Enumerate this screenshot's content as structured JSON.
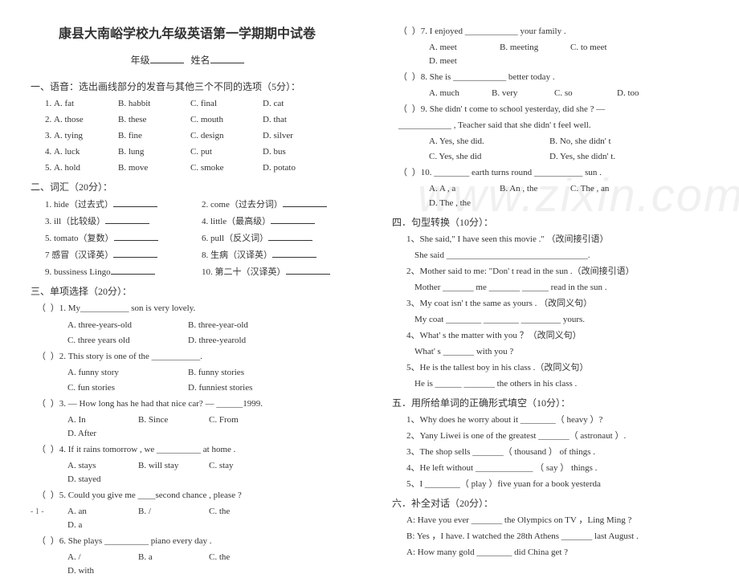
{
  "title": "康县大南峪学校九年级英语第一学期期中试卷",
  "subtitle_parts": {
    "grade": "年级",
    "name": "姓名"
  },
  "sec1": {
    "heading": "一、语音：选出画线部分的发音与其他三个不同的选项（5分）：",
    "rows": [
      {
        "n": "1",
        "a": "A. fat",
        "b": "B. habbit",
        "c": "C. final",
        "d": "D. cat"
      },
      {
        "n": "2",
        "a": "A. those",
        "b": "B. these",
        "c": "C. mouth",
        "d": "D. that"
      },
      {
        "n": "3",
        "a": "A. tying",
        "b": "B. fine",
        "c": "C. design",
        "d": "D. silver"
      },
      {
        "n": "4",
        "a": "A. luck",
        "b": "B. lung",
        "c": "C. put",
        "d": "D. bus"
      },
      {
        "n": "5",
        "a": "A. hold",
        "b": "B. move",
        "c": "C. smoke",
        "d": "D. potato"
      }
    ]
  },
  "sec2": {
    "heading": "二、词汇（20分）：",
    "rows": [
      {
        "l": "1. hide（过去式）",
        "r": "2. come（过去分词）"
      },
      {
        "l": "3. ill（比较级）",
        "r": "4. little（最高级）"
      },
      {
        "l": "5. tomato（复数）",
        "r": "6. pull（反义词）"
      },
      {
        "l": "7 感冒（汉译英）",
        "r": "8. 生病（汉译英）"
      },
      {
        "l": "9. bussiness Lingo",
        "r": "10. 第二十（汉译英）"
      }
    ]
  },
  "sec3": {
    "heading": "三、单项选择（20分）：",
    "q1": {
      "stem": "）1. My___________ son is very lovely.",
      "a": "A. three-years-old",
      "b": "B. three-year-old",
      "c": "C. three years old",
      "d": "D. three-yearold"
    },
    "q2": {
      "stem": "）2. This story is one of the ___________.",
      "a": "A. funny story",
      "b": "B. funny stories",
      "c": "C. fun stories",
      "d": "D. funniest stories"
    },
    "q3": {
      "stem": "）3. — How long has he had that nice car?   — ______1999.",
      "a": "A.  In",
      "b": "B.  Since",
      "c": "C.  From",
      "d": "D.  After"
    },
    "q4": {
      "stem": "）4. If it rains tomorrow , we  __________  at  home .",
      "a": "A.  stays",
      "b": "B. will  stay",
      "c": "C.  stay",
      "d": "D.  stayed"
    },
    "q5": {
      "stem": "）5. Could  you give me ____second chance , please ?",
      "a": "A.  an",
      "b": "B.  /",
      "c": "C.  the",
      "d": "D.  a"
    },
    "q6": {
      "stem": "）6. She  plays  __________  piano  every  day .",
      "a": "A.  /",
      "b": "B.  a",
      "c": "C.  the",
      "d": "D. with"
    }
  },
  "right": {
    "q7": {
      "stem": "）7. I  enjoyed  ____________  your  family  .",
      "a": "A.  meet",
      "b": "B.  meeting",
      "c": "C.  to  meet",
      "d": "D. meet"
    },
    "q8": {
      "stem": "）8.  She  is  ____________  better  today .",
      "a": "A.  much",
      "b": "B.  very",
      "c": "C.  so",
      "d": "D.  too"
    },
    "q9": {
      "stem": "）9. She didn' t come to school yesterday, did  she ?  —",
      "cont": "____________ , Teacher said that she didn' t feel well.",
      "a": "A. Yes, she did.",
      "b": "B. No, she didn' t",
      "c": "C. Yes, she did",
      "d": "D. Yes, she didn' t."
    },
    "q10": {
      "stem": "）10. ________  earth  turns  round  ___________  sun .",
      "a": "A. A ,  a",
      "b": "B. An , the",
      "c": "C. The , an",
      "d": "D. The ,  the"
    }
  },
  "sec4": {
    "heading": "四．句型转换（10分）：",
    "i1a": "1、She said,\" I  have  seen this  movie .\" （改间接引语）",
    "i1b": "She said  ________________________________.",
    "i2a": "2、Mother said to me: \"Don' t read in the sun .（改间接引语）",
    "i2b": "Mother  _______ me  _______  ______  read  in  the  sun .",
    "i3a": "3、My coat isn' t  the  same  as  yours . （改同义句）",
    "i3b": "My coat ________  ________  _________ yours.",
    "i4a": "4、What' s  the  matter  with  you  ？（改同义句）",
    "i4b": "What' s  _______  with  you  ?",
    "i5a": "5、He  is  the tallest  boy in his  class .（改同义句）",
    "i5b": "He is  ______  _______ the others  in his  class ."
  },
  "sec5": {
    "heading": "五．用所给单词的正确形式填空（10分）：",
    "i1": "1、Why  does  he worry about it  ________（ heavy ）?",
    "i2": "2、Yany Liwei is one of the greatest  _______（ astronaut ）.",
    "i3": "3、The  shop  sells  _______（ thousand ） of  things .",
    "i4": "4、He  left  without  _____________ （ say ） things .",
    "i5": "5、I  ________（ play ）five yuan  for a  book  yesterda"
  },
  "sec6": {
    "heading": "六．补全对话（20分）：",
    "l1": "A: Have  you  ever  _______  the  Olympics  on  TV ，Ling Ming ?",
    "l2": "B: Yes ，I have. I watched the 28th  Athens  _______ last August .",
    "l3": "A: How  many gold  ________  did  China  get ?"
  },
  "footer": "- 1 -",
  "watermark": "www.zixin.com.cn"
}
